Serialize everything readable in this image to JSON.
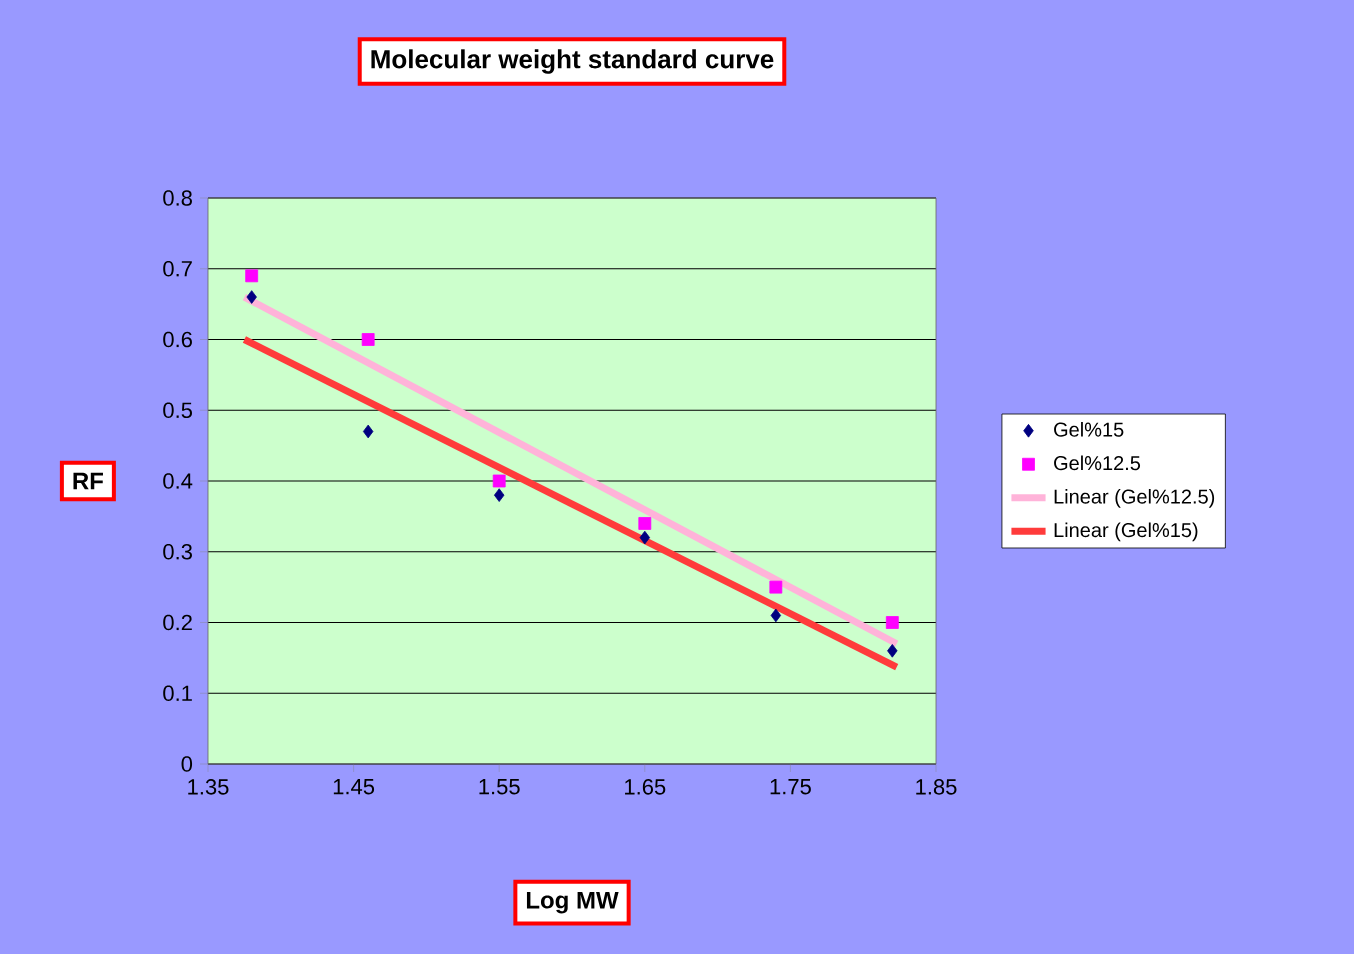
{
  "chart_data": {
    "type": "scatter",
    "title": "Molecular weight standard curve",
    "xlabel": "Log MW",
    "ylabel": "RF",
    "xlim": [
      1.35,
      1.85
    ],
    "xticks": [
      1.35,
      1.45,
      1.55,
      1.65,
      1.75,
      1.85
    ],
    "ylim": [
      0,
      0.8
    ],
    "yticks": [
      0,
      0.1,
      0.2,
      0.3,
      0.4,
      0.5,
      0.6,
      0.7,
      0.8
    ],
    "grid": "y",
    "legend": "right",
    "series": [
      {
        "name": "Gel%15",
        "marker": "diamond",
        "color": "#000080",
        "x": [
          1.38,
          1.46,
          1.55,
          1.65,
          1.74,
          1.82
        ],
        "values": [
          0.66,
          0.47,
          0.38,
          0.32,
          0.21,
          0.16
        ]
      },
      {
        "name": "Gel%12.5",
        "marker": "square",
        "color": "#ff00ff",
        "x": [
          1.38,
          1.46,
          1.55,
          1.65,
          1.74,
          1.82
        ],
        "values": [
          0.69,
          0.6,
          0.4,
          0.34,
          0.25,
          0.2
        ]
      },
      {
        "name": "Linear (Gel%12.5)",
        "type": "line",
        "marker": "none",
        "line_style": "solid",
        "color": "#ffb3d9",
        "x": [
          1.375,
          1.823
        ],
        "values": [
          0.66,
          0.17
        ]
      },
      {
        "name": "Linear (Gel%15)",
        "type": "line",
        "marker": "none",
        "line_style": "solid",
        "color": "#ff3b3b",
        "x": [
          1.375,
          1.823
        ],
        "values": [
          0.6,
          0.137
        ]
      }
    ]
  }
}
